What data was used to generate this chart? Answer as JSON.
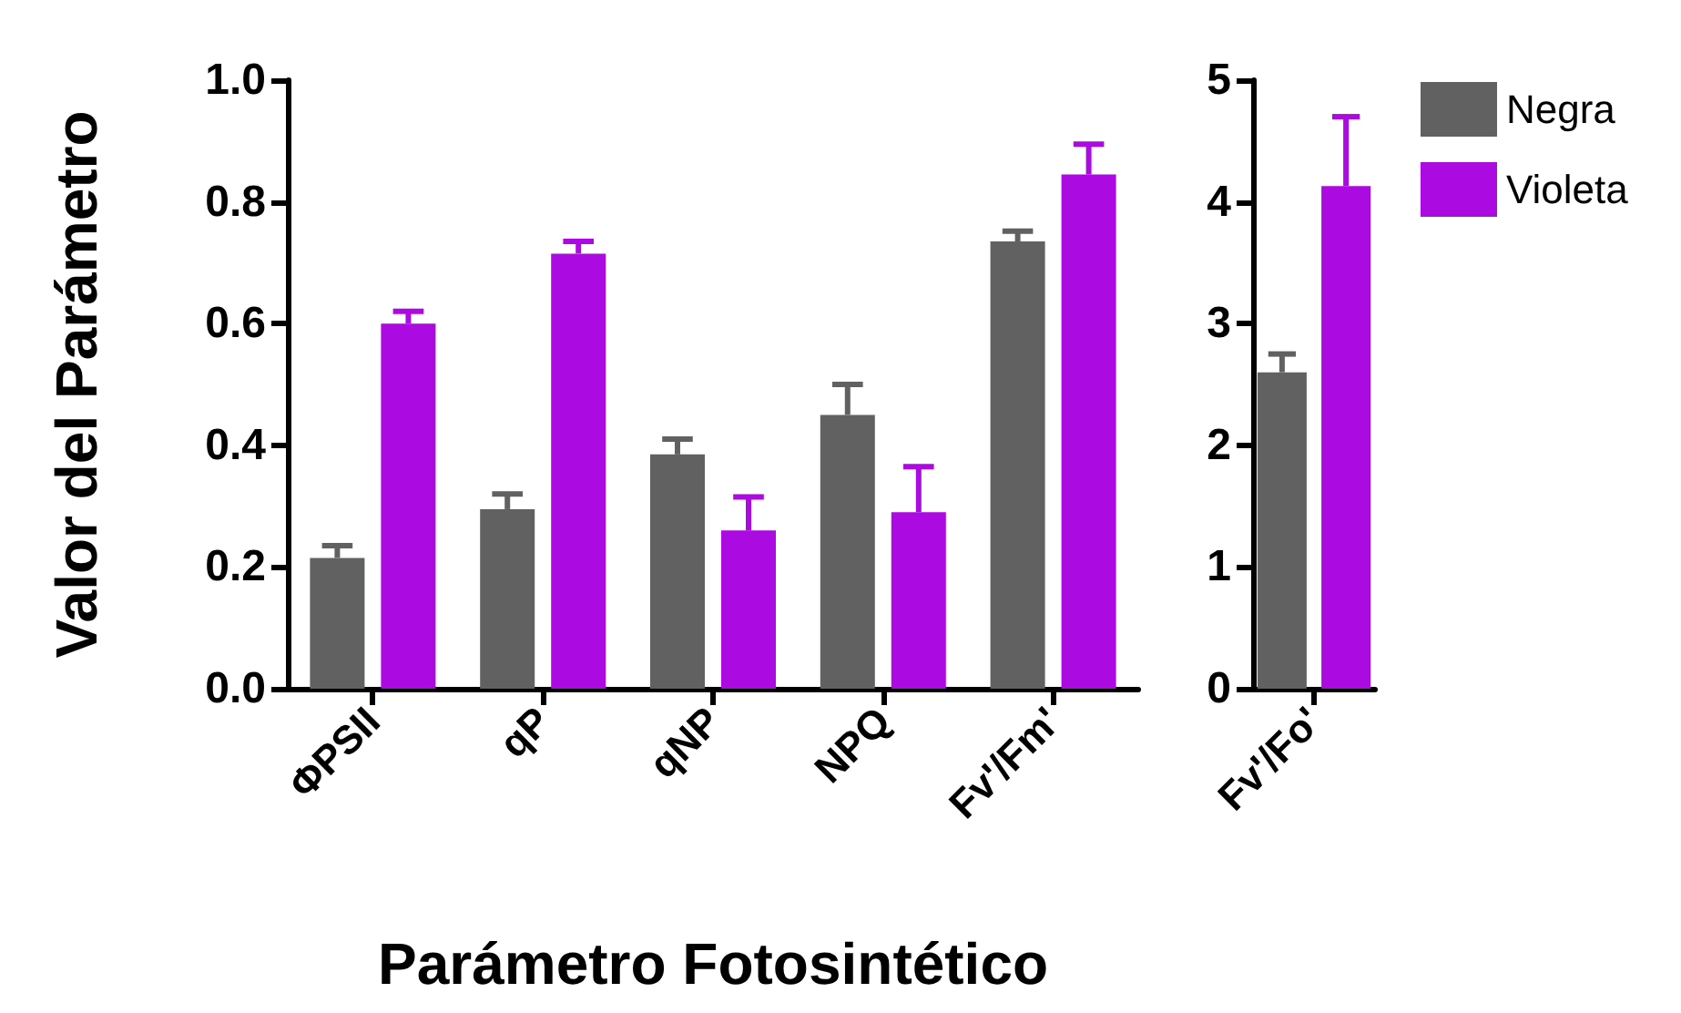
{
  "chart_data": [
    {
      "type": "bar",
      "xlabel": "Parámetro Fotosintético",
      "ylabel": "Valor del Parámetro",
      "categories": [
        "ΦPSII",
        "qP",
        "qNP",
        "NPQ",
        "Fv'/Fm'"
      ],
      "series": [
        {
          "color": "#616161",
          "values": [
            0.215,
            0.295,
            0.385,
            0.45,
            0.735
          ],
          "errors": [
            [
              0.215,
              0.235
            ],
            [
              0.295,
              0.32
            ],
            [
              0.385,
              0.41
            ],
            [
              0.45,
              0.5
            ],
            [
              0.735,
              0.752
            ]
          ]
        },
        {
          "color": "#ab0ae0",
          "values": [
            0.6,
            0.715,
            0.26,
            0.29,
            0.845
          ],
          "errors": [
            [
              0.6,
              0.62
            ],
            [
              0.715,
              0.735
            ],
            [
              0.26,
              0.315
            ],
            [
              0.29,
              0.365
            ],
            [
              0.845,
              0.895
            ]
          ]
        }
      ],
      "ylim": [
        0,
        1
      ],
      "yticks": [
        {
          "value": 0,
          "label": "0.0"
        },
        0.2,
        0.4,
        0.6,
        0.8,
        {
          "value": 1,
          "label": "1.0"
        }
      ],
      "grid": false,
      "legend": false
    },
    {
      "type": "bar",
      "categories": [
        "Fv'/Fo'"
      ],
      "series": [
        {
          "name": "Negra",
          "color": "#616161",
          "values": [
            2.6
          ],
          "errors": [
            [
              2.6,
              2.75
            ]
          ]
        },
        {
          "name": "Violeta",
          "color": "#ab0ae0",
          "values": [
            4.13
          ],
          "errors": [
            [
              4.13,
              4.7
            ]
          ]
        }
      ],
      "ylim": [
        0,
        5
      ],
      "yticks": [
        0,
        1,
        2,
        3,
        4,
        5
      ],
      "grid": false,
      "legend": "right"
    }
  ]
}
